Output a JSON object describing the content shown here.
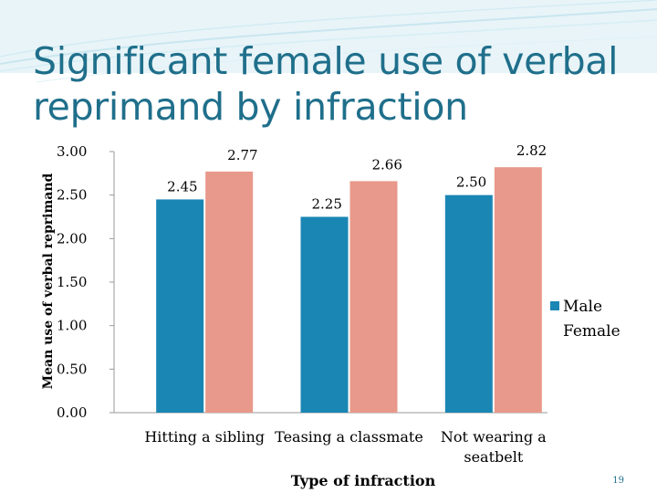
{
  "slide": {
    "title": "Significant female use of verbal reprimand by infraction",
    "number": "19"
  },
  "colors": {
    "male": "#1a86b3",
    "female": "#e8998b",
    "title": "#1f6f8b",
    "axis": "#999999"
  },
  "chart_data": {
    "type": "bar",
    "title": "",
    "xlabel": "Type of infraction",
    "ylabel": "Mean use of verbal reprimand",
    "ylim": [
      0,
      3.0
    ],
    "yticks": [
      "0.00",
      "0.50",
      "1.00",
      "1.50",
      "2.00",
      "2.50",
      "3.00"
    ],
    "ytick_values": [
      0,
      0.5,
      1.0,
      1.5,
      2.0,
      2.5,
      3.0
    ],
    "categories": [
      "Hitting a sibling",
      "Teasing a classmate",
      "Not wearing a seatbelt"
    ],
    "category_lines": [
      [
        "Hitting a sibling"
      ],
      [
        "Teasing a classmate"
      ],
      [
        "Not wearing a",
        "seatbelt"
      ]
    ],
    "series": [
      {
        "name": "Male",
        "values": [
          2.45,
          2.25,
          2.5
        ],
        "labels": [
          "2.45",
          "2.25",
          "2.50"
        ]
      },
      {
        "name": "Female",
        "values": [
          2.77,
          2.66,
          2.82
        ],
        "labels": [
          "2.77",
          "2.66",
          "2.82"
        ]
      }
    ],
    "legend": "right",
    "grid": false
  }
}
